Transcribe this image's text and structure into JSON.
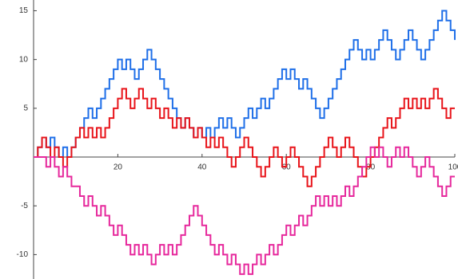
{
  "chart_data": {
    "type": "step",
    "x": [
      0,
      1,
      2,
      3,
      4,
      5,
      6,
      7,
      8,
      9,
      10,
      11,
      12,
      13,
      14,
      15,
      16,
      17,
      18,
      19,
      20,
      21,
      22,
      23,
      24,
      25,
      26,
      27,
      28,
      29,
      30,
      31,
      32,
      33,
      34,
      35,
      36,
      37,
      38,
      39,
      40,
      41,
      42,
      43,
      44,
      45,
      46,
      47,
      48,
      49,
      50,
      51,
      52,
      53,
      54,
      55,
      56,
      57,
      58,
      59,
      60,
      61,
      62,
      63,
      64,
      65,
      66,
      67,
      68,
      69,
      70,
      71,
      72,
      73,
      74,
      75,
      76,
      77,
      78,
      79,
      80,
      81,
      82,
      83,
      84,
      85,
      86,
      87,
      88,
      89,
      90,
      91,
      92,
      93,
      94,
      95,
      96,
      97,
      98,
      99,
      100
    ],
    "series": [
      {
        "color": "#1f6fe8",
        "values": [
          0,
          1,
          2,
          1,
          2,
          1,
          0,
          1,
          0,
          1,
          2,
          3,
          4,
          5,
          4,
          5,
          6,
          7,
          8,
          9,
          10,
          9,
          10,
          9,
          8,
          9,
          10,
          11,
          10,
          9,
          8,
          7,
          6,
          5,
          4,
          3,
          4,
          3,
          2,
          3,
          2,
          3,
          2,
          3,
          4,
          3,
          4,
          3,
          2,
          3,
          4,
          5,
          4,
          5,
          6,
          5,
          6,
          7,
          8,
          9,
          8,
          9,
          8,
          7,
          8,
          7,
          6,
          5,
          4,
          5,
          6,
          7,
          8,
          9,
          10,
          11,
          12,
          11,
          10,
          11,
          10,
          11,
          12,
          13,
          12,
          11,
          10,
          11,
          12,
          13,
          12,
          11,
          10,
          11,
          12,
          13,
          14,
          15,
          14,
          13,
          12
        ]
      },
      {
        "color": "#e8141a",
        "values": [
          0,
          1,
          2,
          1,
          0,
          1,
          0,
          -1,
          0,
          1,
          2,
          3,
          2,
          3,
          2,
          3,
          2,
          3,
          4,
          5,
          6,
          7,
          6,
          5,
          6,
          7,
          6,
          5,
          6,
          5,
          4,
          5,
          4,
          3,
          4,
          3,
          4,
          3,
          2,
          3,
          2,
          1,
          2,
          1,
          2,
          1,
          0,
          -1,
          0,
          1,
          2,
          1,
          0,
          -1,
          -2,
          -1,
          0,
          1,
          0,
          -1,
          0,
          1,
          0,
          -1,
          -2,
          -3,
          -2,
          -1,
          0,
          1,
          2,
          1,
          0,
          1,
          2,
          1,
          0,
          -1,
          -2,
          -1,
          0,
          1,
          2,
          3,
          4,
          3,
          4,
          5,
          6,
          5,
          6,
          5,
          6,
          5,
          6,
          7,
          6,
          5,
          4,
          5,
          5
        ]
      },
      {
        "color": "#e6289c",
        "values": [
          0,
          0,
          0,
          -1,
          0,
          -1,
          -2,
          -1,
          -2,
          -3,
          -3,
          -4,
          -5,
          -4,
          -5,
          -6,
          -5,
          -6,
          -7,
          -8,
          -7,
          -8,
          -9,
          -10,
          -9,
          -10,
          -9,
          -10,
          -11,
          -10,
          -9,
          -10,
          -9,
          -10,
          -9,
          -8,
          -7,
          -6,
          -5,
          -6,
          -7,
          -8,
          -9,
          -10,
          -9,
          -10,
          -11,
          -10,
          -11,
          -12,
          -11,
          -12,
          -11,
          -10,
          -11,
          -10,
          -9,
          -10,
          -9,
          -8,
          -7,
          -8,
          -7,
          -6,
          -7,
          -6,
          -5,
          -4,
          -5,
          -4,
          -5,
          -4,
          -5,
          -4,
          -3,
          -4,
          -3,
          -2,
          -1,
          0,
          1,
          0,
          1,
          0,
          -1,
          0,
          1,
          0,
          1,
          0,
          -1,
          -2,
          -1,
          0,
          -1,
          -2,
          -3,
          -4,
          -3,
          -2,
          -2
        ]
      }
    ],
    "xlim": [
      0,
      100
    ],
    "ylim": [
      -12.5,
      16.1
    ],
    "xticks": [
      20,
      40,
      60,
      80,
      100
    ],
    "yticks": [
      -10,
      -5,
      5,
      10,
      15
    ]
  }
}
